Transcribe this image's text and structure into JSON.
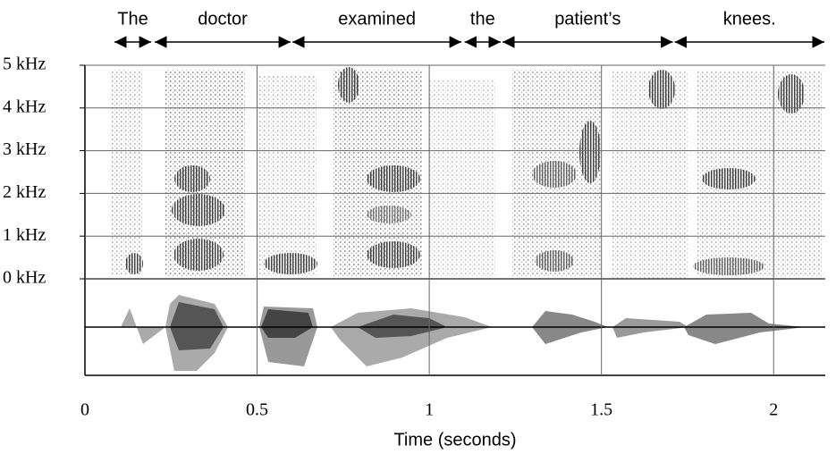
{
  "chart_data": {
    "type": "spectrogram",
    "xlabel": "Time (seconds)",
    "xlim": [
      0,
      2.15
    ],
    "xticks": [
      0,
      0.5,
      1,
      1.5,
      2
    ],
    "ylim": [
      0,
      5
    ],
    "yticks": [
      {
        "value": 0,
        "label": "0 kHz"
      },
      {
        "value": 1,
        "label": "1 kHz"
      },
      {
        "value": 2,
        "label": "2 kHz"
      },
      {
        "value": 3,
        "label": "3 kHz"
      },
      {
        "value": 4,
        "label": "4 kHz"
      },
      {
        "value": 5,
        "label": "5 kHz"
      }
    ],
    "grid": true,
    "words": [
      {
        "text": "The",
        "start": 0.083,
        "end": 0.195
      },
      {
        "text": "doctor",
        "start": 0.2,
        "end": 0.6
      },
      {
        "text": "examined",
        "start": 0.6,
        "end": 1.096
      },
      {
        "text": "the",
        "start": 1.1,
        "end": 1.21
      },
      {
        "text": "patient’s",
        "start": 1.21,
        "end": 1.71
      },
      {
        "text": "knees.",
        "start": 1.71,
        "end": 2.15
      }
    ]
  }
}
